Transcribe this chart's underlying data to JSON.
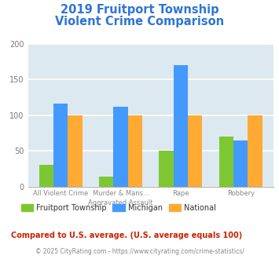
{
  "title_line1": "2019 Fruitport Township",
  "title_line2": "Violent Crime Comparison",
  "title_color": "#2e75d4",
  "category_labels_line1": [
    "All Violent Crime",
    "Murder & Mans...",
    "Rape",
    "Robbery"
  ],
  "category_labels_line2": [
    "",
    "Aggravated Assault",
    "",
    ""
  ],
  "fruitport": [
    30,
    14,
    50,
    70
  ],
  "michigan": [
    116,
    112,
    170,
    65
  ],
  "national": [
    100,
    100,
    100,
    100
  ],
  "fruitport_color": "#7dc832",
  "michigan_color": "#4499ff",
  "national_color": "#ffaa33",
  "ylim": [
    0,
    200
  ],
  "yticks": [
    0,
    50,
    100,
    150,
    200
  ],
  "background_color": "#dce9f0",
  "grid_color": "#ffffff",
  "footnote": "Compared to U.S. average. (U.S. average equals 100)",
  "footnote2": "© 2025 CityRating.com - https://www.cityrating.com/crime-statistics/",
  "footnote_color": "#cc2200",
  "footnote2_color": "#888888",
  "bar_width": 0.24,
  "legend_labels": [
    "Fruitport Township",
    "Michigan",
    "National"
  ]
}
